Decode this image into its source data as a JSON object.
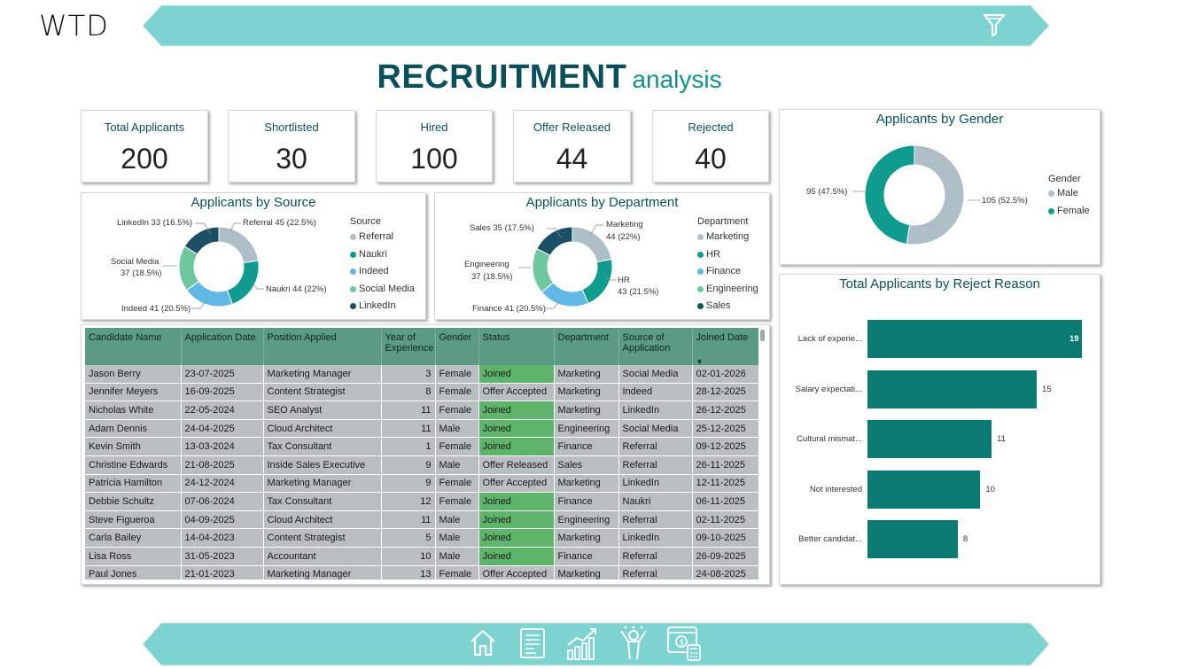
{
  "logo": "WTD",
  "title": {
    "main": "RECRUITMENT",
    "sub": "analysis"
  },
  "filter_icon": "funnel-icon",
  "kpis": [
    {
      "label": "Total Applicants",
      "value": "200"
    },
    {
      "label": "Shortlisted",
      "value": "30"
    },
    {
      "label": "Hired",
      "value": "100"
    },
    {
      "label": "Offer Released",
      "value": "44"
    },
    {
      "label": "Rejected",
      "value": "40"
    }
  ],
  "source_chart": {
    "title": "Applicants by Source",
    "legend_title": "Source",
    "items": [
      {
        "name": "Referral",
        "value": 45,
        "label": "Referral 45 (22.5%)",
        "color": "#aebec6"
      },
      {
        "name": "Naukri",
        "value": 44,
        "label": "Naukri 44 (22%)",
        "color": "#0f9c8e"
      },
      {
        "name": "Indeed",
        "value": 41,
        "label": "Indeed 41 (20.5%)",
        "color": "#62b8e4"
      },
      {
        "name": "Social Media",
        "value": 37,
        "label_line1": "Social Media",
        "label_line2": "37 (18.5%)",
        "color": "#6fc7a0"
      },
      {
        "name": "LinkedIn",
        "value": 33,
        "label": "LinkedIn 33 (16.5%)",
        "color": "#1b4f66"
      }
    ]
  },
  "dept_chart": {
    "title": "Applicants by Department",
    "legend_title": "Department",
    "items": [
      {
        "name": "Marketing",
        "value": 44,
        "label_line1": "Marketing",
        "label_line2": "44 (22%)",
        "color": "#aebec6"
      },
      {
        "name": "HR",
        "value": 43,
        "label_line1": "HR",
        "label_line2": "43 (21.5%)",
        "color": "#0f9c8e"
      },
      {
        "name": "Finance",
        "value": 41,
        "label": "Finance 41 (20.5%)",
        "color": "#62b8e4"
      },
      {
        "name": "Engineering",
        "value": 37,
        "label_line1": "Engineering",
        "label_line2": "37 (18.5%)",
        "color": "#6fc7a0"
      },
      {
        "name": "Sales",
        "value": 35,
        "label": "Sales 35 (17.5%)",
        "color": "#1b4f66"
      }
    ]
  },
  "gender_chart": {
    "title": "Applicants by Gender",
    "legend_title": "Gender",
    "items": [
      {
        "name": "Male",
        "value": 105,
        "label": "105 (52.5%)",
        "color": "#aebec6"
      },
      {
        "name": "Female",
        "value": 95,
        "label": "95 (47.5%)",
        "color": "#0f9c8e"
      }
    ]
  },
  "reject_chart": {
    "title": "Total Applicants by Reject Reason",
    "type": "bar",
    "categories": [
      "Lack of experie...",
      "Salary expectati...",
      "Cultural mismat...",
      "Not interested",
      "Better candidat..."
    ],
    "values": [
      19,
      15,
      11,
      10,
      8
    ],
    "color": "#0b7a73"
  },
  "chart_data": [
    {
      "type": "pie",
      "title": "Applicants by Source",
      "categories": [
        "Referral",
        "Naukri",
        "Indeed",
        "Social Media",
        "LinkedIn"
      ],
      "values": [
        45,
        44,
        41,
        37,
        33
      ]
    },
    {
      "type": "pie",
      "title": "Applicants by Department",
      "categories": [
        "Marketing",
        "HR",
        "Finance",
        "Engineering",
        "Sales"
      ],
      "values": [
        44,
        43,
        41,
        37,
        35
      ]
    },
    {
      "type": "pie",
      "title": "Applicants by Gender",
      "categories": [
        "Male",
        "Female"
      ],
      "values": [
        105,
        95
      ]
    },
    {
      "type": "bar",
      "title": "Total Applicants by Reject Reason",
      "categories": [
        "Lack of experie...",
        "Salary expectati...",
        "Cultural mismat...",
        "Not interested",
        "Better candidat..."
      ],
      "values": [
        19,
        15,
        11,
        10,
        8
      ]
    }
  ],
  "table": {
    "headers": [
      "Candidate Name",
      "Application Date",
      "Position Applied",
      "Year of Experience",
      "Gender",
      "Status",
      "Department",
      "Source of Application",
      "Joined Date"
    ],
    "sort_icon": "sort-descending-icon",
    "rows": [
      [
        "Jason Berry",
        "23-07-2025",
        "Marketing Manager",
        "3",
        "Female",
        "Joined",
        "Marketing",
        "Social Media",
        "02-01-2026"
      ],
      [
        "Jennifer Meyers",
        "16-09-2025",
        "Content Strategist",
        "8",
        "Female",
        "Offer Accepted",
        "Marketing",
        "Indeed",
        "28-12-2025"
      ],
      [
        "Nicholas White",
        "22-05-2024",
        "SEO Analyst",
        "11",
        "Female",
        "Joined",
        "Marketing",
        "LinkedIn",
        "26-12-2025"
      ],
      [
        "Adam Dennis",
        "24-04-2025",
        "Cloud Architect",
        "11",
        "Male",
        "Joined",
        "Engineering",
        "Social Media",
        "25-12-2025"
      ],
      [
        "Kevin Smith",
        "13-03-2024",
        "Tax Consultant",
        "1",
        "Female",
        "Joined",
        "Finance",
        "Referral",
        "09-12-2025"
      ],
      [
        "Christine Edwards",
        "21-08-2025",
        "Inside Sales Executive",
        "9",
        "Male",
        "Offer Released",
        "Sales",
        "Referral",
        "26-11-2025"
      ],
      [
        "Patricia Hamilton",
        "24-12-2024",
        "Marketing Manager",
        "9",
        "Female",
        "Offer Accepted",
        "Marketing",
        "LinkedIn",
        "12-11-2025"
      ],
      [
        "Debbie Schultz",
        "07-06-2024",
        "Tax Consultant",
        "12",
        "Female",
        "Joined",
        "Finance",
        "Naukri",
        "06-11-2025"
      ],
      [
        "Steve Figueroa",
        "04-09-2025",
        "Cloud Architect",
        "11",
        "Male",
        "Joined",
        "Engineering",
        "Referral",
        "02-11-2025"
      ],
      [
        "Carla Bailey",
        "14-04-2023",
        "Content Strategist",
        "5",
        "Male",
        "Joined",
        "Marketing",
        "LinkedIn",
        "09-10-2025"
      ],
      [
        "Lisa Ross",
        "31-05-2023",
        "Accountant",
        "10",
        "Male",
        "Joined",
        "Finance",
        "Referral",
        "26-09-2025"
      ],
      [
        "Paul Jones",
        "21-01-2023",
        "Marketing Manager",
        "13",
        "Female",
        "Offer Accepted",
        "Marketing",
        "Referral",
        "24-08-2025"
      ]
    ]
  },
  "nav": [
    "home-icon",
    "report-icon",
    "growth-chart-icon",
    "celebrate-people-icon",
    "finance-calculator-icon"
  ]
}
